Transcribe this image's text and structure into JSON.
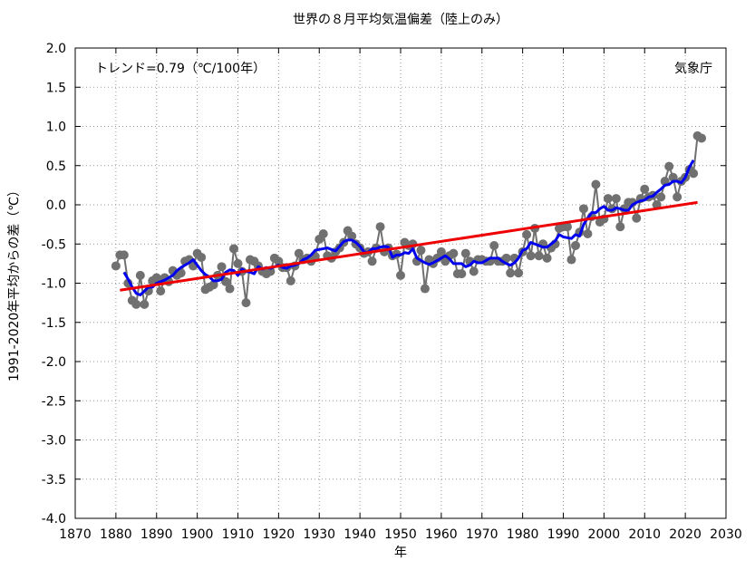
{
  "chart_data": {
    "type": "line",
    "title": "世界の８月平均気温偏差（陸上のみ）",
    "annotations": [
      "トレンド=0.79（℃/100年）",
      "気象庁"
    ],
    "xlabel": "年",
    "ylabel": "1991-2020年平均からの差（℃）",
    "xlim": [
      1870,
      2030
    ],
    "xticks": [
      1870,
      1880,
      1890,
      1900,
      1910,
      1920,
      1930,
      1940,
      1950,
      1960,
      1970,
      1980,
      1990,
      2000,
      2010,
      2020,
      2030
    ],
    "ylim": [
      -4,
      2
    ],
    "yticks": [
      {
        "value": 2,
        "label": "2.0"
      },
      1.5,
      {
        "value": 1,
        "label": "1.0"
      },
      0.5,
      {
        "value": 0,
        "label": "0.0"
      },
      -0.5,
      {
        "value": -1,
        "label": "-1.0"
      },
      -1.5,
      {
        "value": -2,
        "label": "-2.0"
      },
      -2.5,
      {
        "value": -3,
        "label": "-3.0"
      },
      -3.5,
      {
        "value": -4,
        "label": "-4.0"
      }
    ],
    "grid": true,
    "series": [
      {
        "color": "#707070",
        "markers": true,
        "x": [
          1880,
          1881,
          1882,
          1883,
          1884,
          1885,
          1886,
          1887,
          1888,
          1889,
          1890,
          1891,
          1892,
          1893,
          1894,
          1895,
          1896,
          1897,
          1898,
          1899,
          1900,
          1901,
          1902,
          1903,
          1904,
          1905,
          1906,
          1907,
          1908,
          1909,
          1910,
          1911,
          1912,
          1913,
          1914,
          1915,
          1916,
          1917,
          1918,
          1919,
          1920,
          1921,
          1922,
          1923,
          1924,
          1925,
          1926,
          1927,
          1928,
          1929,
          1930,
          1931,
          1932,
          1933,
          1934,
          1935,
          1936,
          1937,
          1938,
          1939,
          1940,
          1941,
          1942,
          1943,
          1944,
          1945,
          1946,
          1947,
          1948,
          1949,
          1950,
          1951,
          1952,
          1953,
          1954,
          1955,
          1956,
          1957,
          1958,
          1959,
          1960,
          1961,
          1962,
          1963,
          1964,
          1965,
          1966,
          1967,
          1968,
          1969,
          1970,
          1971,
          1972,
          1973,
          1974,
          1975,
          1976,
          1977,
          1978,
          1979,
          1980,
          1981,
          1982,
          1983,
          1984,
          1985,
          1986,
          1987,
          1988,
          1989,
          1990,
          1991,
          1992,
          1993,
          1994,
          1995,
          1996,
          1997,
          1998,
          1999,
          2000,
          2001,
          2002,
          2003,
          2004,
          2005,
          2006,
          2007,
          2008,
          2009,
          2010,
          2011,
          2012,
          2013,
          2014,
          2015,
          2016,
          2017,
          2018,
          2019,
          2020,
          2021,
          2022,
          2023,
          2024
        ],
        "values": [
          -0.78,
          -0.64,
          -0.64,
          -1.0,
          -1.22,
          -1.27,
          -0.9,
          -1.27,
          -1.1,
          -0.97,
          -0.93,
          -1.1,
          -0.93,
          -0.98,
          -0.84,
          -0.9,
          -0.87,
          -0.72,
          -0.7,
          -0.78,
          -0.62,
          -0.67,
          -1.08,
          -1.05,
          -1.02,
          -0.9,
          -0.79,
          -0.98,
          -1.07,
          -0.56,
          -0.75,
          -0.85,
          -1.25,
          -0.7,
          -0.72,
          -0.78,
          -0.85,
          -0.88,
          -0.85,
          -0.68,
          -0.72,
          -0.8,
          -0.8,
          -0.97,
          -0.78,
          -0.62,
          -0.7,
          -0.68,
          -0.72,
          -0.66,
          -0.44,
          -0.37,
          -0.65,
          -0.68,
          -0.6,
          -0.55,
          -0.48,
          -0.33,
          -0.4,
          -0.5,
          -0.55,
          -0.62,
          -0.6,
          -0.72,
          -0.55,
          -0.28,
          -0.6,
          -0.55,
          -0.65,
          -0.63,
          -0.9,
          -0.48,
          -0.52,
          -0.5,
          -0.72,
          -0.58,
          -1.07,
          -0.7,
          -0.75,
          -0.68,
          -0.6,
          -0.72,
          -0.65,
          -0.62,
          -0.88,
          -0.88,
          -0.62,
          -0.72,
          -0.85,
          -0.7,
          -0.7,
          -0.72,
          -0.72,
          -0.52,
          -0.72,
          -0.72,
          -0.68,
          -0.87,
          -0.68,
          -0.87,
          -0.6,
          -0.38,
          -0.65,
          -0.3,
          -0.65,
          -0.5,
          -0.68,
          -0.55,
          -0.5,
          -0.3,
          -0.28,
          -0.28,
          -0.7,
          -0.52,
          -0.35,
          -0.05,
          -0.37,
          -0.15,
          0.26,
          -0.22,
          -0.18,
          0.08,
          -0.05,
          0.08,
          -0.28,
          -0.05,
          0.03,
          0.03,
          -0.17,
          0.08,
          0.2,
          0.1,
          0.12,
          0.0,
          0.1,
          0.3,
          0.49,
          0.35,
          0.1,
          0.3,
          0.35,
          0.45,
          0.4,
          0.88,
          0.85
        ]
      },
      {
        "color": "#0000ee",
        "markers": false,
        "x": [
          1882,
          1883,
          1884,
          1885,
          1886,
          1887,
          1888,
          1889,
          1890,
          1891,
          1892,
          1893,
          1894,
          1895,
          1896,
          1897,
          1898,
          1899,
          1900,
          1901,
          1902,
          1903,
          1904,
          1905,
          1906,
          1907,
          1908,
          1909,
          1910,
          1911,
          1912,
          1913,
          1914,
          1915,
          1916,
          1917,
          1918,
          1919,
          1920,
          1921,
          1922,
          1923,
          1924,
          1925,
          1926,
          1927,
          1928,
          1929,
          1930,
          1931,
          1932,
          1933,
          1934,
          1935,
          1936,
          1937,
          1938,
          1939,
          1940,
          1941,
          1942,
          1943,
          1944,
          1945,
          1946,
          1947,
          1948,
          1949,
          1950,
          1951,
          1952,
          1953,
          1954,
          1955,
          1956,
          1957,
          1958,
          1959,
          1960,
          1961,
          1962,
          1963,
          1964,
          1965,
          1966,
          1967,
          1968,
          1969,
          1970,
          1971,
          1972,
          1973,
          1974,
          1975,
          1976,
          1977,
          1978,
          1979,
          1980,
          1981,
          1982,
          1983,
          1984,
          1985,
          1986,
          1987,
          1988,
          1989,
          1990,
          1991,
          1992,
          1993,
          1994,
          1995,
          1996,
          1997,
          1998,
          1999,
          2000,
          2001,
          2002,
          2003,
          2004,
          2005,
          2006,
          2007,
          2008,
          2009,
          2010,
          2011,
          2012,
          2013,
          2014,
          2015,
          2016,
          2017,
          2018,
          2019,
          2020,
          2021,
          2022
        ],
        "values": [
          -0.86,
          -0.95,
          -1.05,
          -1.13,
          -1.15,
          -1.1,
          -1.05,
          -1.05,
          -1.0,
          -0.98,
          -0.96,
          -0.93,
          -0.9,
          -0.84,
          -0.8,
          -0.77,
          -0.74,
          -0.7,
          -0.77,
          -0.84,
          -0.89,
          -0.92,
          -0.97,
          -0.97,
          -0.95,
          -0.86,
          -0.83,
          -0.84,
          -0.9,
          -0.82,
          -0.85,
          -0.86,
          -0.88,
          -0.79,
          -0.82,
          -0.8,
          -0.81,
          -0.79,
          -0.77,
          -0.8,
          -0.81,
          -0.78,
          -0.77,
          -0.75,
          -0.7,
          -0.68,
          -0.64,
          -0.58,
          -0.57,
          -0.56,
          -0.55,
          -0.57,
          -0.59,
          -0.53,
          -0.47,
          -0.45,
          -0.45,
          -0.48,
          -0.53,
          -0.6,
          -0.61,
          -0.56,
          -0.56,
          -0.54,
          -0.53,
          -0.54,
          -0.67,
          -0.64,
          -0.64,
          -0.61,
          -0.62,
          -0.56,
          -0.68,
          -0.71,
          -0.74,
          -0.76,
          -0.74,
          -0.71,
          -0.68,
          -0.65,
          -0.69,
          -0.75,
          -0.75,
          -0.75,
          -0.79,
          -0.77,
          -0.72,
          -0.74,
          -0.74,
          -0.71,
          -0.68,
          -0.68,
          -0.68,
          -0.72,
          -0.75,
          -0.77,
          -0.74,
          -0.68,
          -0.58,
          -0.56,
          -0.48,
          -0.5,
          -0.52,
          -0.54,
          -0.54,
          -0.5,
          -0.46,
          -0.38,
          -0.41,
          -0.42,
          -0.43,
          -0.38,
          -0.4,
          -0.25,
          -0.17,
          -0.1,
          -0.1,
          -0.05,
          -0.02,
          -0.07,
          -0.07,
          -0.04,
          -0.05,
          -0.07,
          -0.07,
          0.0,
          0.03,
          0.05,
          0.06,
          0.1,
          0.11,
          0.16,
          0.2,
          0.25,
          0.26,
          0.3,
          0.3,
          0.28,
          0.35,
          0.48,
          0.57
        ]
      },
      {
        "color": "#ee0000",
        "markers": false,
        "x": [
          1881,
          2023
        ],
        "values": [
          -1.09,
          0.03
        ]
      }
    ]
  }
}
